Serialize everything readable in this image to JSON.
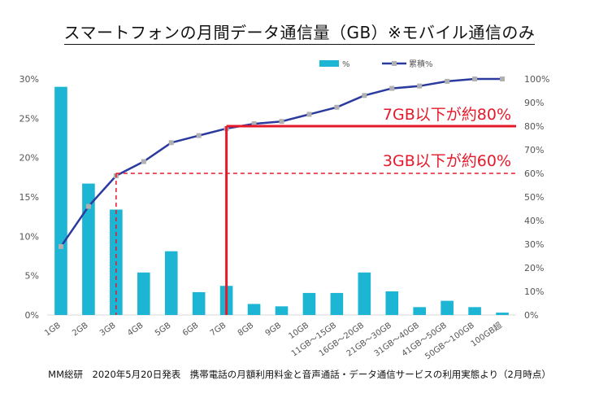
{
  "title": "スマートフォンの月間データ通信量（GB）※モバイル通信のみ",
  "source_note": "MM総研　2020年5月20日発表　携帯電話の月額利用料金と音声通話・データ通信サービスの利用実態より（2月時点）",
  "colors": {
    "bar": "#1cb5d4",
    "line": "#2b3a9e",
    "marker": "#b0b0b0",
    "highlight_red": "#e5192a",
    "axis_text": "#555555",
    "grid": "#e6e6e6"
  },
  "chart_data": {
    "type": "bar",
    "categories": [
      "1GB",
      "2GB",
      "3GB",
      "4GB",
      "5GB",
      "6GB",
      "7GB",
      "8GB",
      "9GB",
      "10GB",
      "11GB～15GB",
      "16GB～20GB",
      "21GB～30GB",
      "31GB～40GB",
      "41GB～50GB",
      "50GB～100GB",
      "100GB超"
    ],
    "series": [
      {
        "name": "%",
        "type": "bar",
        "axis": "left",
        "values": [
          29.0,
          16.7,
          13.4,
          5.4,
          8.1,
          2.9,
          3.7,
          1.4,
          1.1,
          2.8,
          2.8,
          5.4,
          3.0,
          1.0,
          1.8,
          1.0,
          0.3
        ]
      },
      {
        "name": "累積%",
        "type": "line",
        "axis": "right",
        "values": [
          29,
          46,
          59,
          65,
          73,
          76,
          79,
          81,
          82,
          85,
          88,
          93,
          96,
          97,
          99,
          100,
          100
        ]
      }
    ],
    "y_left": {
      "min": 0,
      "max": 30,
      "ticks": [
        "0%",
        "5%",
        "10%",
        "15%",
        "20%",
        "25%",
        "30%"
      ]
    },
    "y_right": {
      "min": 0,
      "max": 100,
      "ticks": [
        "0%",
        "10%",
        "20%",
        "30%",
        "40%",
        "50%",
        "60%",
        "70%",
        "80%",
        "90%",
        "100%"
      ]
    },
    "legend_position": "top",
    "legend": {
      "bar_label": "%",
      "line_label": "累積%"
    },
    "annotations": [
      {
        "text": "7GB以下が約80%",
        "category": "7GB",
        "value_pct": 80,
        "style": "solid"
      },
      {
        "text": "3GB以下が約60%",
        "category": "3GB",
        "value_pct": 60,
        "style": "dashed"
      }
    ],
    "grid": false
  }
}
